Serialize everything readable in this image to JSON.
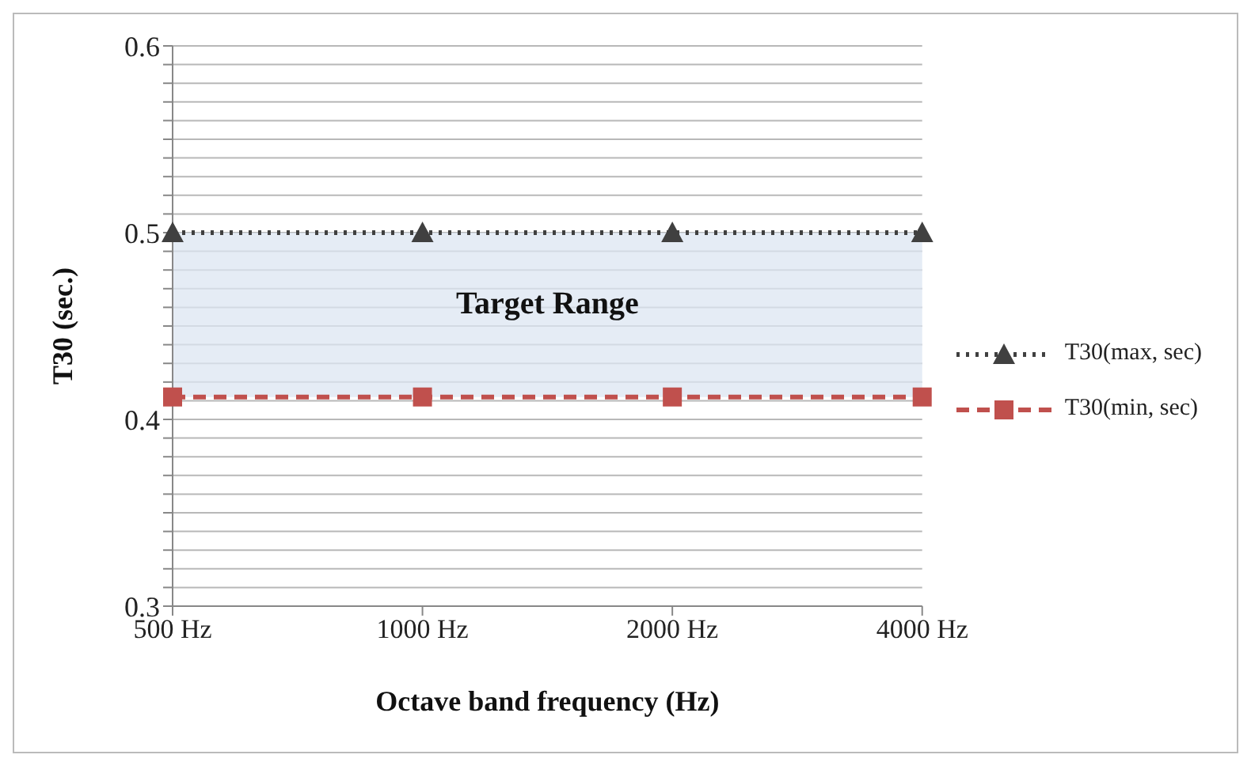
{
  "chart_data": {
    "type": "line",
    "xlabel": "Octave band frequency (Hz)",
    "ylabel": "T30 (sec.)",
    "categories": [
      "500 Hz",
      "1000 Hz",
      "2000 Hz",
      "4000 Hz"
    ],
    "series": [
      {
        "name": "T30(max, sec)",
        "color": "#404040",
        "values": [
          0.5,
          0.5,
          0.5,
          0.5
        ],
        "marker": "triangle",
        "line_style": "dotted"
      },
      {
        "name": "T30(min, sec)",
        "color": "#c0504d",
        "values": [
          0.412,
          0.412,
          0.412,
          0.412
        ],
        "marker": "square",
        "line_style": "dashed"
      }
    ],
    "ylim": [
      0.3,
      0.6
    ],
    "yticks": [
      0.3,
      {
        "value": 0.31,
        "label": null
      },
      {
        "value": 0.32,
        "label": null
      },
      {
        "value": 0.33,
        "label": null
      },
      {
        "value": 0.34,
        "label": null
      },
      {
        "value": 0.35,
        "label": null
      },
      {
        "value": 0.36,
        "label": null
      },
      {
        "value": 0.37,
        "label": null
      },
      {
        "value": 0.38,
        "label": null
      },
      {
        "value": 0.39,
        "label": null
      },
      0.4,
      {
        "value": 0.41,
        "label": null
      },
      {
        "value": 0.42,
        "label": null
      },
      {
        "value": 0.43,
        "label": null
      },
      {
        "value": 0.44,
        "label": null
      },
      {
        "value": 0.45,
        "label": null
      },
      {
        "value": 0.46,
        "label": null
      },
      {
        "value": 0.47,
        "label": null
      },
      {
        "value": 0.48,
        "label": null
      },
      {
        "value": 0.49,
        "label": null
      },
      0.5,
      {
        "value": 0.51,
        "label": null
      },
      {
        "value": 0.52,
        "label": null
      },
      {
        "value": 0.53,
        "label": null
      },
      {
        "value": 0.54,
        "label": null
      },
      {
        "value": 0.55,
        "label": null
      },
      {
        "value": 0.56,
        "label": null
      },
      {
        "value": 0.57,
        "label": null
      },
      {
        "value": 0.58,
        "label": null
      },
      {
        "value": 0.59,
        "label": null
      },
      0.6
    ],
    "bands": [
      {
        "axis": "y",
        "from": 0.412,
        "to": 0.5,
        "label": "Target Range",
        "color": "#dce6f2"
      }
    ],
    "grid": "y",
    "legend": "right"
  }
}
